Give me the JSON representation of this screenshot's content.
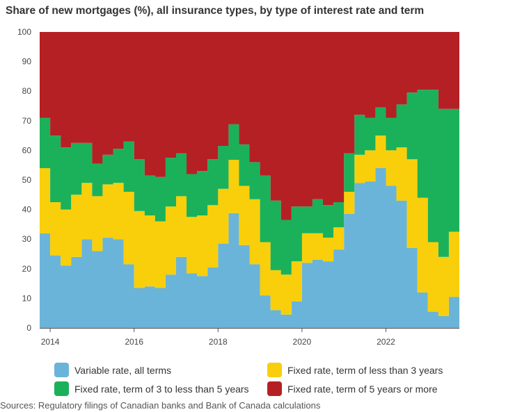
{
  "chart_data": {
    "type": "area",
    "stacked": true,
    "title": "Share of new mortgages (%), all insurance types, by type of interest rate and term",
    "xlabel": "",
    "ylabel": "",
    "ylim": [
      0,
      100
    ],
    "yticks": [
      0,
      10,
      20,
      30,
      40,
      50,
      60,
      70,
      80,
      90,
      100
    ],
    "xlim": [
      2013.75,
      2023.75
    ],
    "xticks": [
      2014,
      2016,
      2018,
      2020,
      2022
    ],
    "x": [
      2013.75,
      2014.0,
      2014.25,
      2014.5,
      2014.75,
      2015.0,
      2015.25,
      2015.5,
      2015.75,
      2016.0,
      2016.25,
      2016.5,
      2016.75,
      2017.0,
      2017.25,
      2017.5,
      2017.75,
      2018.0,
      2018.25,
      2018.5,
      2018.75,
      2019.0,
      2019.25,
      2019.5,
      2019.75,
      2020.0,
      2020.25,
      2020.5,
      2020.75,
      2021.0,
      2021.25,
      2021.5,
      2021.75,
      2022.0,
      2022.25,
      2022.5,
      2022.75,
      2023.0,
      2023.25,
      2023.5
    ],
    "series": [
      {
        "name": "Variable rate, all terms",
        "color": "#6ab4d9",
        "values": [
          32,
          24.5,
          21,
          24,
          30,
          26,
          30.5,
          30,
          21.5,
          13.5,
          14,
          13.5,
          18,
          24,
          18.5,
          17.5,
          20.5,
          28.5,
          38.8,
          28,
          21.5,
          11,
          6,
          4.5,
          9,
          22,
          23,
          22.5,
          26.5,
          38.5,
          49,
          49.5,
          54,
          48,
          43,
          27,
          12,
          5.5,
          4,
          10.5
        ]
      },
      {
        "name": "Fixed rate, term of less than 3 years",
        "color": "#f8cf0a",
        "values": [
          22,
          18,
          19,
          21,
          19,
          18.5,
          18,
          19,
          24.5,
          26,
          24,
          22.5,
          23,
          20.5,
          19,
          20.5,
          21,
          18.5,
          18,
          20,
          22,
          18,
          13.5,
          13.5,
          13.5,
          10,
          9,
          8,
          7.5,
          7.5,
          9.5,
          10.5,
          11,
          12,
          18,
          30,
          32,
          23.5,
          20,
          22
        ]
      },
      {
        "name": "Fixed rate, term of 3 to less than 5 years",
        "color": "#1bb15a",
        "values": [
          17,
          22.5,
          21,
          17.5,
          13.5,
          11,
          10,
          11.5,
          17,
          17.5,
          13.5,
          15,
          16.5,
          14.5,
          14.5,
          15,
          15.5,
          14.5,
          12,
          14,
          12.5,
          22.5,
          23.5,
          18.5,
          18.5,
          9,
          11.5,
          11,
          8.5,
          13,
          13.5,
          11,
          9.5,
          11,
          14.5,
          22.5,
          36.5,
          51.5,
          50,
          41.5
        ]
      },
      {
        "name": "Fixed rate, term of 5 years or more",
        "color": "#b52024",
        "values": [
          29,
          35,
          39,
          37.5,
          37.5,
          44.5,
          41.5,
          39.5,
          37,
          43,
          48.5,
          49,
          42.5,
          41,
          48,
          47,
          43,
          38.5,
          31.2,
          38,
          44,
          48.5,
          57,
          63.5,
          59,
          59,
          56.5,
          58.5,
          57.5,
          41,
          28,
          29,
          25.5,
          29,
          24.5,
          20.5,
          19.5,
          19.5,
          26,
          26
        ]
      }
    ]
  },
  "source": "Sources: Regulatory filings of Canadian banks and Bank of Canada calculations"
}
